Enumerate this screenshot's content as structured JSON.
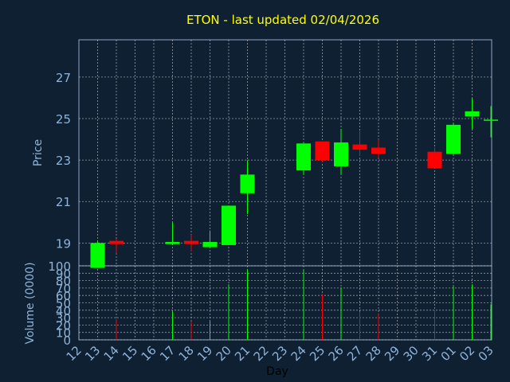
{
  "chart_data": {
    "type": "candlestick",
    "title": "ETON - last updated 02/04/2026",
    "xlabel": "Day",
    "ylabel": "Price",
    "volume_label": "Volume (0000)",
    "x_ticks": [
      "12",
      "13",
      "14",
      "15",
      "16",
      "17",
      "18",
      "19",
      "20",
      "21",
      "22",
      "23",
      "24",
      "25",
      "26",
      "27",
      "28",
      "29",
      "30",
      "31",
      "01",
      "02",
      "03"
    ],
    "price_ticks": [
      "19",
      "21",
      "23",
      "25",
      "27"
    ],
    "price_ylim": [
      17.9,
      28.8
    ],
    "volume_ticks": [
      "0",
      "10",
      "20",
      "30",
      "40",
      "50",
      "60",
      "70",
      "80",
      "90",
      "100"
    ],
    "volume_ylim": [
      0,
      100
    ],
    "grid": true,
    "colors": {
      "up": "#00ff00",
      "down": "#ff0000",
      "background": "#0f2033",
      "plot": "#0f2033",
      "grid": "#d0d0d0",
      "title": "#ffff00",
      "axis_text": "#8fb3d9"
    },
    "candles": [
      {
        "day": "12",
        "open": 17.8,
        "high": 19.1,
        "low": 17.8,
        "close": 19.0,
        "volume": 0
      },
      {
        "day": "13",
        "open": 19.1,
        "high": 19.2,
        "low": 18.5,
        "close": 18.95,
        "volume": 28
      },
      {
        "day": "16",
        "open": 18.95,
        "high": 20.0,
        "low": 18.9,
        "close": 19.05,
        "volume": 38
      },
      {
        "day": "17",
        "open": 19.1,
        "high": 19.4,
        "low": 18.6,
        "close": 18.95,
        "volume": 25
      },
      {
        "day": "18",
        "open": 18.8,
        "high": 19.6,
        "low": 18.8,
        "close": 19.05,
        "volume": 25
      },
      {
        "day": "19",
        "open": 18.9,
        "high": 20.8,
        "low": 18.9,
        "close": 20.8,
        "volume": 75
      },
      {
        "day": "20",
        "open": 21.4,
        "high": 23.0,
        "low": 20.4,
        "close": 22.3,
        "volume": 95
      },
      {
        "day": "23",
        "open": 22.5,
        "high": 23.8,
        "low": 22.3,
        "close": 23.8,
        "volume": 95
      },
      {
        "day": "24",
        "open": 23.9,
        "high": 23.9,
        "low": 22.9,
        "close": 23.0,
        "volume": 62
      },
      {
        "day": "25",
        "open": 22.7,
        "high": 24.5,
        "low": 22.3,
        "close": 23.85,
        "volume": 70
      },
      {
        "day": "26",
        "open": 23.75,
        "high": 24.4,
        "low": 23.2,
        "close": 23.5,
        "volume": 38
      },
      {
        "day": "27",
        "open": 23.6,
        "high": 24.0,
        "low": 23.1,
        "close": 23.3,
        "volume": 35
      },
      {
        "day": "30",
        "open": 23.4,
        "high": 23.6,
        "low": 22.6,
        "close": 22.6,
        "volume": 40
      },
      {
        "day": "31",
        "open": 23.3,
        "high": 24.8,
        "low": 23.2,
        "close": 24.7,
        "volume": 72
      },
      {
        "day": "01",
        "open": 25.1,
        "high": 26.0,
        "low": 24.5,
        "close": 25.35,
        "volume": 75
      },
      {
        "day": "02",
        "open": 24.95,
        "high": 25.6,
        "low": 24.1,
        "close": 24.95,
        "volume": 48
      }
    ]
  }
}
